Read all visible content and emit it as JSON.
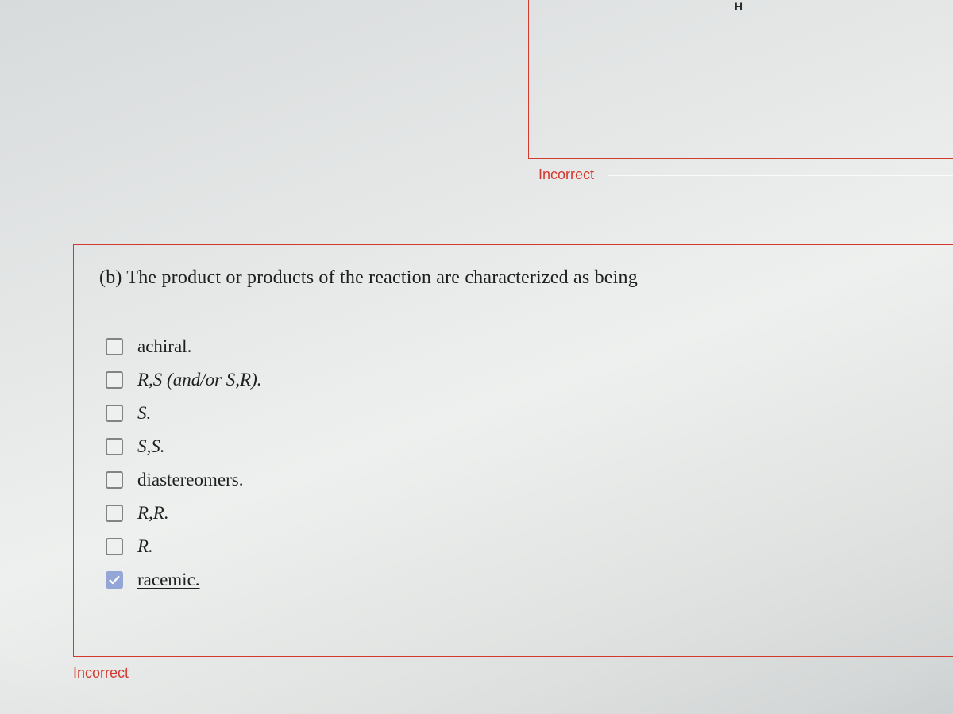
{
  "colors": {
    "error": "#d33a2f",
    "checkbox_border": "#7f8585",
    "checkbox_checked_bg": "#93a6d6",
    "text": "#1f1f1f"
  },
  "upper": {
    "h_label": "H",
    "incorrect_label": "Incorrect"
  },
  "question": {
    "prefix": "(b) ",
    "text": "The product or products of the reaction are characterized as being"
  },
  "options": [
    {
      "label": "achiral.",
      "italic": false,
      "checked": false,
      "underline": false
    },
    {
      "label": "R,S (and/or S,R).",
      "italic": true,
      "checked": false,
      "underline": false
    },
    {
      "label": "S.",
      "italic": true,
      "checked": false,
      "underline": false
    },
    {
      "label": "S,S.",
      "italic": true,
      "checked": false,
      "underline": false
    },
    {
      "label": "diastereomers.",
      "italic": false,
      "checked": false,
      "underline": false
    },
    {
      "label": "R,R.",
      "italic": true,
      "checked": false,
      "underline": false
    },
    {
      "label": "R.",
      "italic": true,
      "checked": false,
      "underline": false
    },
    {
      "label": "racemic.",
      "italic": false,
      "checked": true,
      "underline": true
    }
  ],
  "lower_incorrect": "Incorrect"
}
